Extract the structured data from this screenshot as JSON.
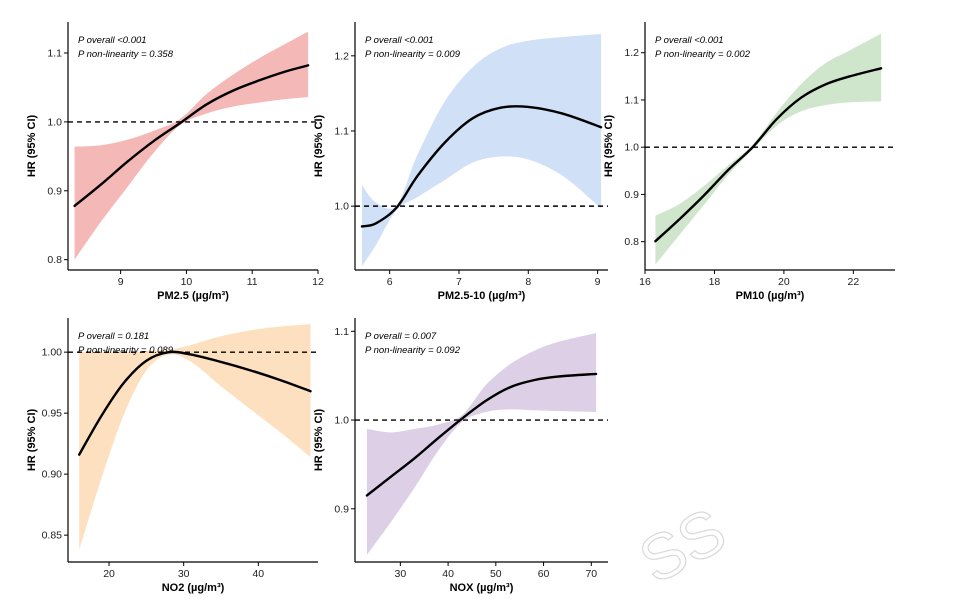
{
  "watermark": "SS",
  "chart_data": [
    {
      "type": "line",
      "title": "",
      "xlabel": "PM2.5 (µg/m³)",
      "ylabel": "HR (95% CI)",
      "annotations": [
        "P overall <0.001",
        "P non-linearity = 0.358"
      ],
      "xlim": [
        8.2,
        12.0
      ],
      "ylim": [
        0.785,
        1.145
      ],
      "xticks": [
        9,
        10,
        11,
        12
      ],
      "yticks": [
        0.8,
        0.9,
        1.0,
        1.1
      ],
      "ytick_labels": [
        "0.8",
        "0.9",
        "1.0",
        "1.1"
      ],
      "reference_y": 1.0,
      "band_color": "#f4b8b6",
      "x": [
        8.3,
        8.7,
        9.1,
        9.5,
        9.9,
        10.3,
        10.7,
        11.1,
        11.5,
        11.85
      ],
      "y": [
        0.878,
        0.909,
        0.942,
        0.972,
        0.998,
        1.025,
        1.045,
        1.06,
        1.073,
        1.082
      ],
      "lower": [
        0.8,
        0.855,
        0.905,
        0.955,
        0.995,
        1.012,
        1.022,
        1.028,
        1.033,
        1.036
      ],
      "upper": [
        0.964,
        0.966,
        0.974,
        0.987,
        1.004,
        1.04,
        1.068,
        1.092,
        1.113,
        1.131
      ]
    },
    {
      "type": "line",
      "title": "",
      "xlabel": "PM2.5-10 (µg/m³)",
      "ylabel": "HR (95% CI)",
      "annotations": [
        "P overall <0.001",
        "P non-linearity = 0.009"
      ],
      "xlim": [
        5.5,
        9.15
      ],
      "ylim": [
        0.915,
        1.245
      ],
      "xticks": [
        6,
        7,
        8,
        9
      ],
      "yticks": [
        1.0,
        1.1,
        1.2
      ],
      "ytick_labels": [
        "1.0",
        "1.1",
        "1.2"
      ],
      "reference_y": 1.0,
      "band_color": "#cfe0f7",
      "x": [
        5.6,
        5.8,
        6.1,
        6.4,
        6.8,
        7.2,
        7.6,
        8.0,
        8.5,
        9.05
      ],
      "y": [
        0.973,
        0.977,
        0.998,
        1.04,
        1.085,
        1.117,
        1.131,
        1.132,
        1.123,
        1.105
      ],
      "lower": [
        0.92,
        0.948,
        0.995,
        1.012,
        1.035,
        1.058,
        1.066,
        1.062,
        1.04,
        0.997
      ],
      "upper": [
        1.028,
        1.005,
        1.001,
        1.068,
        1.14,
        1.185,
        1.21,
        1.22,
        1.225,
        1.229
      ]
    },
    {
      "type": "line",
      "title": "",
      "xlabel": "PM10 (µg/m³)",
      "ylabel": "HR (95% CI)",
      "annotations": [
        "P overall <0.001",
        "P non-linearity = 0.002"
      ],
      "xlim": [
        16.0,
        23.2
      ],
      "ylim": [
        0.74,
        1.265
      ],
      "xticks": [
        16,
        18,
        20,
        22
      ],
      "yticks": [
        0.8,
        0.9,
        1.0,
        1.1,
        1.2
      ],
      "ytick_labels": [
        "0.8",
        "0.9",
        "1.0",
        "1.1",
        "1.2"
      ],
      "reference_y": 1.0,
      "band_color": "#cfe6cc",
      "x": [
        16.3,
        17.0,
        17.7,
        18.4,
        19.1,
        19.8,
        20.5,
        21.2,
        21.9,
        22.8
      ],
      "y": [
        0.801,
        0.848,
        0.898,
        0.952,
        1.0,
        1.06,
        1.105,
        1.133,
        1.15,
        1.167
      ],
      "lower": [
        0.752,
        0.815,
        0.878,
        0.942,
        0.995,
        1.046,
        1.076,
        1.089,
        1.095,
        1.097
      ],
      "upper": [
        0.855,
        0.88,
        0.918,
        0.962,
        1.005,
        1.074,
        1.134,
        1.178,
        1.205,
        1.24
      ]
    },
    {
      "type": "line",
      "title": "",
      "xlabel": "NO2 (µg/m³)",
      "ylabel": "HR (95% CI)",
      "annotations": [
        "P overall = 0.181",
        "P non-linearity = 0.089"
      ],
      "xlim": [
        14.5,
        48.0
      ],
      "ylim": [
        0.828,
        1.028
      ],
      "xticks": [
        20,
        30,
        40
      ],
      "yticks": [
        0.85,
        0.9,
        0.95,
        1.0
      ],
      "ytick_labels": [
        "0.85",
        "0.90",
        "0.95",
        "1.00"
      ],
      "reference_y": 1.0,
      "band_color": "#fde0c0",
      "x": [
        16.0,
        19.0,
        22.0,
        25.0,
        28.0,
        31.0,
        35.0,
        39.0,
        43.0,
        47.0
      ],
      "y": [
        0.916,
        0.948,
        0.975,
        0.993,
        1.0,
        0.998,
        0.992,
        0.985,
        0.977,
        0.968
      ],
      "lower": [
        0.838,
        0.897,
        0.949,
        0.985,
        0.998,
        0.992,
        0.972,
        0.953,
        0.934,
        0.914
      ],
      "upper": [
        1.0,
        1.0,
        1.0,
        1.001,
        1.002,
        1.006,
        1.013,
        1.018,
        1.021,
        1.023
      ]
    },
    {
      "type": "line",
      "title": "",
      "xlabel": "NOX (µg/m³)",
      "ylabel": "HR (95% CI)",
      "annotations": [
        "P overall = 0.007",
        "P non-linearity = 0.092"
      ],
      "xlim": [
        20.5,
        73.5
      ],
      "ylim": [
        0.84,
        1.115
      ],
      "xticks": [
        30,
        40,
        50,
        60,
        70
      ],
      "yticks": [
        0.9,
        1.0,
        1.1
      ],
      "ytick_labels": [
        "0.9",
        "1.0",
        "1.1"
      ],
      "reference_y": 1.0,
      "band_color": "#ddd0e6",
      "x": [
        23.0,
        28.0,
        33.0,
        38.0,
        43.0,
        48.0,
        53.0,
        58.0,
        63.0,
        71.0
      ],
      "y": [
        0.915,
        0.936,
        0.957,
        0.98,
        1.002,
        1.022,
        1.037,
        1.045,
        1.049,
        1.052
      ],
      "lower": [
        0.848,
        0.885,
        0.924,
        0.966,
        0.998,
        1.009,
        1.012,
        1.011,
        1.01,
        1.009
      ],
      "upper": [
        0.99,
        0.986,
        0.99,
        0.995,
        1.006,
        1.04,
        1.063,
        1.078,
        1.088,
        1.098
      ]
    }
  ]
}
